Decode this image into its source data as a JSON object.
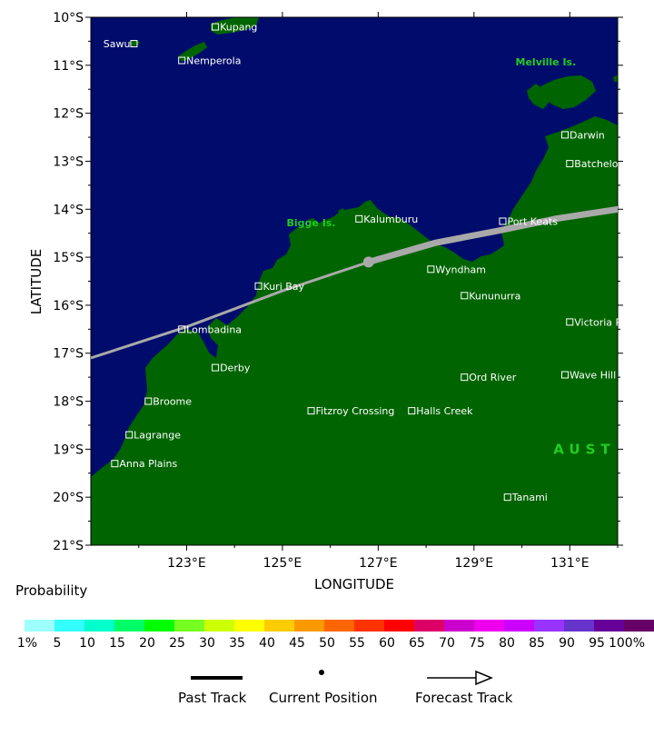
{
  "map": {
    "lon_ticks": [
      "123°E",
      "125°E",
      "127°E",
      "129°E",
      "131°E"
    ],
    "lat_ticks": [
      "10°S",
      "11°S",
      "12°S",
      "13°S",
      "14°S",
      "15°S",
      "16°S",
      "17°S",
      "18°S",
      "19°S",
      "20°S",
      "21°S"
    ],
    "xlabel": "LONGITUDE",
    "ylabel": "LATITUDE",
    "extent": {
      "lon_min": 121.0,
      "lon_max": 132.0,
      "lat_min": -21.0,
      "lat_max": -10.0
    },
    "colors": {
      "ocean": "#000c6b",
      "land": "#006400",
      "track": "#a9a9a9",
      "region_label": "#22cc22"
    },
    "places": [
      {
        "name": "Sawu",
        "lon": 121.9,
        "lat": -10.55
      },
      {
        "name": "Kupang",
        "lon": 123.6,
        "lat": -10.2
      },
      {
        "name": "Nemperola",
        "lon": 122.9,
        "lat": -10.9
      },
      {
        "name": "Darwin",
        "lon": 130.9,
        "lat": -12.45
      },
      {
        "name": "Batchelor",
        "lon": 131.0,
        "lat": -13.05
      },
      {
        "name": "Kalumburu",
        "lon": 126.6,
        "lat": -14.2
      },
      {
        "name": "Port Keats",
        "lon": 129.6,
        "lat": -14.25
      },
      {
        "name": "Wyndham",
        "lon": 128.1,
        "lat": -15.25
      },
      {
        "name": "Kuri Bay",
        "lon": 124.5,
        "lat": -15.6
      },
      {
        "name": "Kununurra",
        "lon": 128.8,
        "lat": -15.8
      },
      {
        "name": "Victoria R. Downs",
        "lon": 131.0,
        "lat": -16.35
      },
      {
        "name": "Lombadina",
        "lon": 122.9,
        "lat": -16.5
      },
      {
        "name": "Derby",
        "lon": 123.6,
        "lat": -17.3
      },
      {
        "name": "Ord River",
        "lon": 128.8,
        "lat": -17.5
      },
      {
        "name": "Wave Hill",
        "lon": 130.9,
        "lat": -17.45
      },
      {
        "name": "Broome",
        "lon": 122.2,
        "lat": -18.0
      },
      {
        "name": "Fitzroy Crossing",
        "lon": 125.6,
        "lat": -18.2
      },
      {
        "name": "Halls Creek",
        "lon": 127.7,
        "lat": -18.2
      },
      {
        "name": "Lagrange",
        "lon": 121.8,
        "lat": -18.7
      },
      {
        "name": "Anna Plains",
        "lon": 121.5,
        "lat": -19.3
      },
      {
        "name": "Tanami",
        "lon": 129.7,
        "lat": -20.0
      }
    ],
    "regions": [
      {
        "name": "Melville Is.",
        "lon": 130.5,
        "lat": -11.0
      },
      {
        "name": "Bigge Is.",
        "lon": 125.6,
        "lat": -14.35
      }
    ],
    "country_label": {
      "name": "AUST",
      "lon": 131.0,
      "lat": -19.0
    },
    "past_track": [
      {
        "lon": 121.0,
        "lat": -17.1
      },
      {
        "lon": 123.0,
        "lat": -16.45
      },
      {
        "lon": 125.0,
        "lat": -15.7
      },
      {
        "lon": 126.8,
        "lat": -15.1
      }
    ],
    "forecast_track": [
      {
        "lon": 126.8,
        "lat": -15.1
      },
      {
        "lon": 128.2,
        "lat": -14.7
      },
      {
        "lon": 129.5,
        "lat": -14.45
      },
      {
        "lon": 130.7,
        "lat": -14.2
      },
      {
        "lon": 132.0,
        "lat": -14.0
      }
    ],
    "current_position": {
      "lon": 126.8,
      "lat": -15.1
    }
  },
  "legend": {
    "title": "Probability",
    "labels": [
      "1%",
      "5",
      "10",
      "15",
      "20",
      "25",
      "30",
      "35",
      "40",
      "45",
      "50",
      "55",
      "60",
      "65",
      "70",
      "75",
      "80",
      "85",
      "90",
      "95",
      "100%"
    ],
    "colors": [
      "#9effff",
      "#33ffff",
      "#00ffcc",
      "#00ff66",
      "#00ff00",
      "#77ff22",
      "#ccff00",
      "#ffff00",
      "#ffcc00",
      "#ff9900",
      "#ff6600",
      "#ff3300",
      "#ff0000",
      "#dd0066",
      "#cc00cc",
      "#ee00ee",
      "#cc00ff",
      "#9933ff",
      "#6633cc",
      "#660099",
      "#660066"
    ],
    "past_track_label": "Past Track",
    "current_position_label": "Current Position",
    "forecast_track_label": "Forecast Track"
  }
}
